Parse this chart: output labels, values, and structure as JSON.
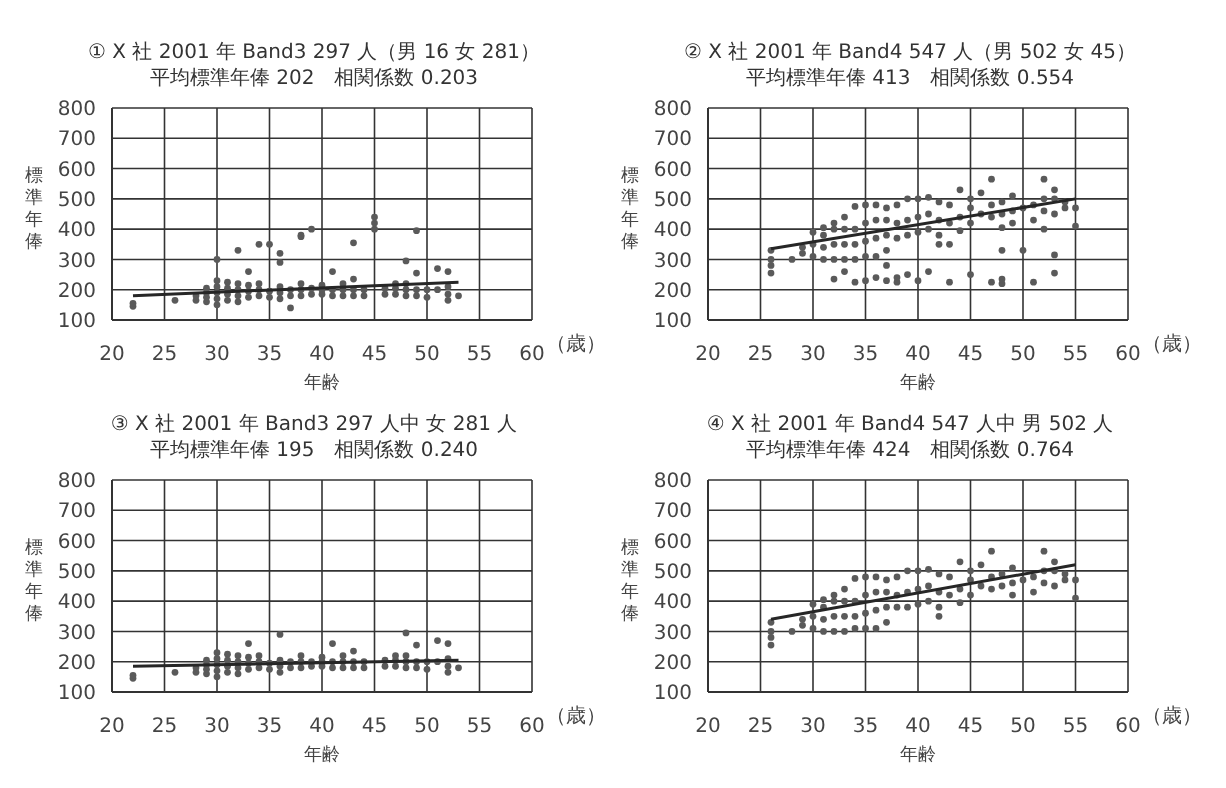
{
  "chart_data": [
    {
      "type": "scatter",
      "title": "① X 社 2001 年 Band3 297 人（男 16 女 281）",
      "subtitle": "平均標準年俸 202　相関係数 0.203",
      "xlabel": "年齢",
      "ylabel": "標準年俸",
      "annotations": [
        "（歳）"
      ],
      "xlim": [
        20,
        60
      ],
      "xticks": [
        20,
        25,
        30,
        35,
        40,
        45,
        50,
        55,
        60
      ],
      "ylim": [
        100,
        800
      ],
      "yticks": [
        100,
        200,
        300,
        400,
        500,
        600,
        700,
        800
      ],
      "grid": true,
      "series": [
        {
          "marker": "circle",
          "color": "#5a5a5a",
          "x": [
            22,
            22,
            26,
            28,
            28,
            29,
            29,
            29,
            29,
            30,
            30,
            30,
            30,
            30,
            30,
            31,
            31,
            31,
            31,
            32,
            32,
            32,
            32,
            32,
            33,
            33,
            33,
            33,
            34,
            34,
            34,
            34,
            35,
            35,
            35,
            36,
            36,
            36,
            36,
            36,
            37,
            37,
            37,
            38,
            38,
            38,
            38,
            38,
            39,
            39,
            39,
            40,
            40,
            40,
            41,
            41,
            41,
            42,
            42,
            42,
            43,
            43,
            43,
            43,
            44,
            44,
            45,
            45,
            45,
            46,
            46,
            47,
            47,
            47,
            48,
            48,
            48,
            48,
            49,
            49,
            49,
            49,
            50,
            50,
            51,
            51,
            52,
            52,
            52,
            52,
            53
          ],
          "values": [
            145,
            155,
            165,
            165,
            180,
            160,
            175,
            190,
            205,
            150,
            170,
            190,
            210,
            230,
            300,
            165,
            185,
            205,
            225,
            160,
            180,
            200,
            220,
            330,
            175,
            195,
            215,
            260,
            180,
            200,
            220,
            350,
            175,
            195,
            350,
            170,
            190,
            210,
            290,
            320,
            140,
            180,
            200,
            180,
            200,
            220,
            375,
            380,
            185,
            205,
            400,
            185,
            200,
            215,
            180,
            200,
            260,
            180,
            200,
            220,
            180,
            200,
            235,
            355,
            180,
            200,
            400,
            420,
            440,
            185,
            205,
            185,
            205,
            220,
            180,
            200,
            220,
            295,
            180,
            200,
            255,
            395,
            175,
            200,
            200,
            270,
            165,
            185,
            210,
            260,
            180
          ]
        },
        {
          "type": "line",
          "marker": "none",
          "color": "#262626",
          "x": [
            22,
            53
          ],
          "values": [
            180,
            225
          ]
        }
      ]
    },
    {
      "type": "scatter",
      "title": "② X 社 2001 年 Band4 547 人（男 502 女 45）",
      "subtitle": "平均標準年俸 413　相関係数 0.554",
      "xlabel": "年齢",
      "ylabel": "標準年俸",
      "annotations": [
        "（歳）"
      ],
      "xlim": [
        20,
        60
      ],
      "xticks": [
        20,
        25,
        30,
        35,
        40,
        45,
        50,
        55,
        60
      ],
      "ylim": [
        100,
        800
      ],
      "yticks": [
        100,
        200,
        300,
        400,
        500,
        600,
        700,
        800
      ],
      "grid": true,
      "series": [
        {
          "marker": "circle",
          "color": "#5a5a5a",
          "x": [
            26,
            26,
            26,
            26,
            28,
            29,
            29,
            30,
            30,
            30,
            31,
            31,
            31,
            31,
            32,
            32,
            32,
            32,
            32,
            33,
            33,
            33,
            33,
            33,
            34,
            34,
            34,
            34,
            34,
            35,
            35,
            35,
            35,
            35,
            36,
            36,
            36,
            36,
            36,
            37,
            37,
            37,
            37,
            37,
            37,
            38,
            38,
            38,
            38,
            38,
            39,
            39,
            39,
            39,
            40,
            40,
            40,
            40,
            41,
            41,
            41,
            41,
            42,
            42,
            42,
            42,
            43,
            43,
            43,
            43,
            44,
            44,
            44,
            45,
            45,
            45,
            45,
            46,
            46,
            47,
            47,
            47,
            47,
            48,
            48,
            48,
            48,
            48,
            48,
            49,
            49,
            49,
            50,
            50,
            51,
            51,
            51,
            52,
            52,
            52,
            52,
            53,
            53,
            53,
            53,
            53,
            54,
            54,
            55,
            55
          ],
          "values": [
            255,
            280,
            300,
            330,
            300,
            320,
            340,
            310,
            350,
            390,
            300,
            340,
            380,
            405,
            235,
            300,
            350,
            400,
            420,
            260,
            300,
            350,
            400,
            440,
            225,
            300,
            350,
            400,
            475,
            230,
            310,
            360,
            420,
            480,
            240,
            310,
            370,
            430,
            480,
            230,
            280,
            330,
            380,
            430,
            470,
            225,
            240,
            370,
            420,
            480,
            250,
            380,
            430,
            500,
            230,
            390,
            440,
            500,
            260,
            400,
            450,
            505,
            350,
            380,
            430,
            490,
            225,
            350,
            420,
            480,
            395,
            440,
            530,
            250,
            420,
            470,
            500,
            450,
            520,
            225,
            440,
            480,
            565,
            220,
            235,
            330,
            405,
            450,
            490,
            420,
            460,
            510,
            330,
            470,
            225,
            430,
            480,
            400,
            460,
            500,
            565,
            255,
            315,
            450,
            500,
            530,
            470,
            490,
            410,
            470
          ]
        },
        {
          "type": "line",
          "marker": "none",
          "color": "#262626",
          "x": [
            26,
            55
          ],
          "values": [
            335,
            500
          ]
        }
      ]
    },
    {
      "type": "scatter",
      "title": "③ X 社 2001 年 Band3 297 人中 女 281 人",
      "subtitle": "平均標準年俸 195　相関係数 0.240",
      "xlabel": "年齢",
      "ylabel": "標準年俸",
      "annotations": [
        "（歳）"
      ],
      "xlim": [
        20,
        60
      ],
      "xticks": [
        20,
        25,
        30,
        35,
        40,
        45,
        50,
        55,
        60
      ],
      "ylim": [
        100,
        800
      ],
      "yticks": [
        100,
        200,
        300,
        400,
        500,
        600,
        700,
        800
      ],
      "grid": true,
      "series": [
        {
          "marker": "circle",
          "color": "#5a5a5a",
          "x": [
            22,
            22,
            26,
            28,
            28,
            29,
            29,
            29,
            29,
            30,
            30,
            30,
            30,
            30,
            31,
            31,
            31,
            31,
            32,
            32,
            32,
            32,
            33,
            33,
            33,
            33,
            34,
            34,
            34,
            35,
            35,
            36,
            36,
            36,
            36,
            37,
            37,
            38,
            38,
            38,
            39,
            39,
            40,
            40,
            40,
            41,
            41,
            41,
            42,
            42,
            42,
            43,
            43,
            43,
            44,
            44,
            46,
            46,
            47,
            47,
            47,
            48,
            48,
            48,
            48,
            49,
            49,
            49,
            50,
            50,
            51,
            51,
            52,
            52,
            52,
            52,
            53
          ],
          "values": [
            145,
            155,
            165,
            165,
            180,
            160,
            175,
            190,
            205,
            150,
            170,
            190,
            210,
            230,
            165,
            185,
            205,
            225,
            160,
            180,
            200,
            220,
            175,
            195,
            215,
            260,
            180,
            200,
            220,
            175,
            195,
            165,
            185,
            205,
            290,
            180,
            200,
            180,
            200,
            220,
            185,
            200,
            185,
            200,
            215,
            180,
            200,
            260,
            180,
            200,
            220,
            180,
            200,
            235,
            180,
            200,
            185,
            205,
            185,
            205,
            220,
            180,
            200,
            220,
            295,
            180,
            200,
            255,
            175,
            200,
            200,
            270,
            165,
            185,
            210,
            260,
            180
          ]
        },
        {
          "type": "line",
          "marker": "none",
          "color": "#262626",
          "x": [
            22,
            53
          ],
          "values": [
            185,
            205
          ]
        }
      ]
    },
    {
      "type": "scatter",
      "title": "④ X 社 2001 年 Band4 547 人中 男 502 人",
      "subtitle": "平均標準年俸 424　相関係数 0.764",
      "xlabel": "年齢",
      "ylabel": "標準年俸",
      "annotations": [
        "（歳）"
      ],
      "xlim": [
        20,
        60
      ],
      "xticks": [
        20,
        25,
        30,
        35,
        40,
        45,
        50,
        55,
        60
      ],
      "ylim": [
        100,
        800
      ],
      "yticks": [
        100,
        200,
        300,
        400,
        500,
        600,
        700,
        800
      ],
      "grid": true,
      "series": [
        {
          "marker": "circle",
          "color": "#5a5a5a",
          "x": [
            26,
            26,
            26,
            26,
            28,
            29,
            29,
            30,
            30,
            30,
            31,
            31,
            31,
            31,
            32,
            32,
            32,
            32,
            33,
            33,
            33,
            33,
            34,
            34,
            34,
            34,
            35,
            35,
            35,
            35,
            36,
            36,
            36,
            36,
            37,
            37,
            37,
            37,
            38,
            38,
            38,
            39,
            39,
            39,
            40,
            40,
            40,
            41,
            41,
            41,
            42,
            42,
            42,
            42,
            43,
            43,
            44,
            44,
            44,
            45,
            45,
            45,
            46,
            46,
            47,
            47,
            47,
            48,
            48,
            49,
            49,
            49,
            50,
            51,
            51,
            52,
            52,
            52,
            53,
            53,
            53,
            54,
            54,
            55,
            55
          ],
          "values": [
            255,
            280,
            300,
            330,
            300,
            320,
            340,
            310,
            350,
            390,
            300,
            340,
            380,
            405,
            300,
            350,
            400,
            420,
            300,
            350,
            400,
            440,
            310,
            350,
            400,
            475,
            310,
            360,
            420,
            480,
            310,
            370,
            430,
            480,
            330,
            380,
            430,
            470,
            380,
            420,
            480,
            380,
            430,
            500,
            390,
            440,
            500,
            400,
            450,
            505,
            350,
            380,
            430,
            490,
            420,
            480,
            395,
            440,
            530,
            420,
            470,
            500,
            450,
            520,
            440,
            480,
            565,
            450,
            490,
            420,
            460,
            510,
            470,
            430,
            480,
            460,
            500,
            565,
            450,
            500,
            530,
            470,
            490,
            410,
            470
          ]
        },
        {
          "type": "line",
          "marker": "none",
          "color": "#262626",
          "x": [
            26,
            55
          ],
          "values": [
            340,
            520
          ]
        }
      ]
    }
  ]
}
